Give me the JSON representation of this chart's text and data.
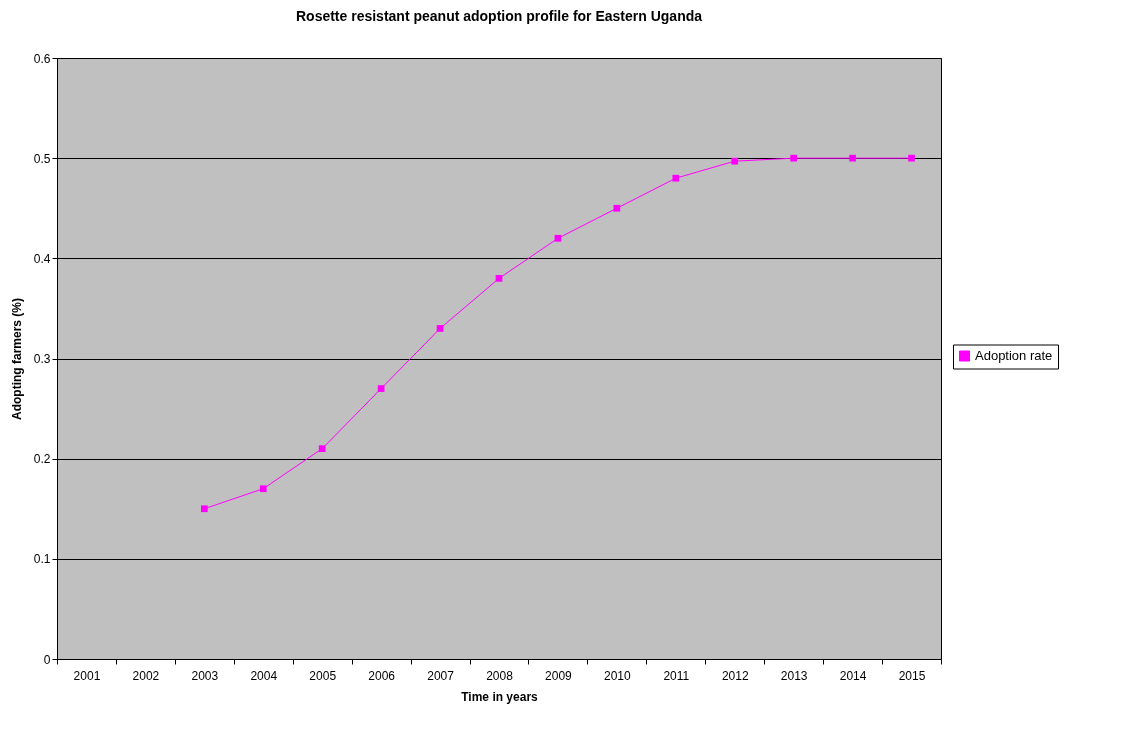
{
  "chart_data": {
    "type": "line",
    "title": "Rosette resistant peanut adoption profile for Eastern Uganda",
    "xlabel": "Time in years",
    "ylabel": "Adopting farmers (%)",
    "categories": [
      "2001",
      "2002",
      "2003",
      "2004",
      "2005",
      "2006",
      "2007",
      "2008",
      "2009",
      "2010",
      "2011",
      "2012",
      "2013",
      "2014",
      "2015"
    ],
    "series": [
      {
        "name": "Adoption rate",
        "color": "#ff00ff",
        "values": [
          null,
          null,
          0.15,
          0.17,
          0.21,
          0.27,
          0.33,
          0.38,
          0.42,
          0.45,
          0.48,
          0.497,
          0.5,
          0.5,
          0.5
        ]
      }
    ],
    "ylim": [
      0,
      0.6
    ],
    "yticks": [
      0,
      0.1,
      0.2,
      0.3,
      0.4,
      0.5,
      0.6
    ],
    "grid": "y",
    "legend": "right",
    "marker": "square",
    "line_style": "solid"
  }
}
